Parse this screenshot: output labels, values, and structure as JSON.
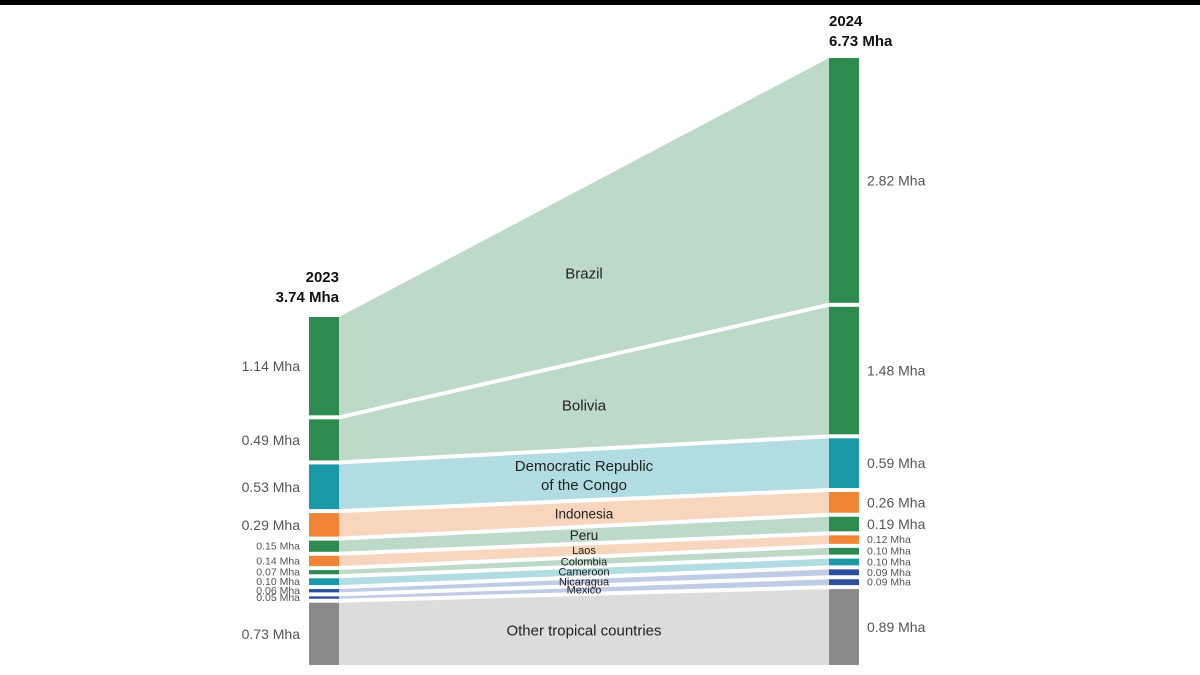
{
  "chart_data": {
    "type": "sankey",
    "title": "",
    "columns": [
      {
        "year": "2023",
        "total": "3.74 Mha"
      },
      {
        "year": "2024",
        "total": "6.73 Mha"
      }
    ],
    "unit": "Mha",
    "flows": [
      {
        "country": "Brazil",
        "value_2023": 1.14,
        "value_2024": 2.82,
        "label_2023": "1.14 Mha",
        "label_2024": "2.82 Mha",
        "bar_color": "#2e8b4f",
        "band_color": "#bdd9c7"
      },
      {
        "country": "Bolivia",
        "value_2023": 0.49,
        "value_2024": 1.48,
        "label_2023": "0.49 Mha",
        "label_2024": "1.48 Mha",
        "bar_color": "#2e8b4f",
        "band_color": "#bdd9c7"
      },
      {
        "country": "Democratic Republic\nof the Congo",
        "value_2023": 0.53,
        "value_2024": 0.59,
        "label_2023": "0.53 Mha",
        "label_2024": "0.59 Mha",
        "bar_color": "#1a9aa6",
        "band_color": "#b1dde2"
      },
      {
        "country": "Indonesia",
        "value_2023": 0.29,
        "value_2024": 0.26,
        "label_2023": "0.29 Mha",
        "label_2024": "0.26 Mha",
        "bar_color": "#ef8535",
        "band_color": "#f8d6bd"
      },
      {
        "country": "Peru",
        "value_2023": 0.15,
        "value_2024": 0.19,
        "label_2023": "0.15 Mha",
        "label_2024": "0.19 Mha",
        "bar_color": "#2e8b4f",
        "band_color": "#bdd9c7"
      },
      {
        "country": "Laos",
        "value_2023": 0.14,
        "value_2024": 0.12,
        "label_2023": "0.14 Mha",
        "label_2024": "0.12 Mha",
        "bar_color": "#ef8535",
        "band_color": "#f8d6bd"
      },
      {
        "country": "Colombia",
        "value_2023": 0.07,
        "value_2024": 0.1,
        "label_2023": "0.07 Mha",
        "label_2024": "0.10 Mha",
        "bar_color": "#2e8b4f",
        "band_color": "#bdd9c7"
      },
      {
        "country": "Cameroon",
        "value_2023": 0.1,
        "value_2024": 0.1,
        "label_2023": "0.10 Mha",
        "label_2024": "0.10 Mha",
        "bar_color": "#1a9aa6",
        "band_color": "#b1dde2"
      },
      {
        "country": "Nicaragua",
        "value_2023": 0.06,
        "value_2024": 0.09,
        "label_2023": "0.06 Mha",
        "label_2024": "0.09 Mha",
        "bar_color": "#2d4f9e",
        "band_color": "#c0cbe6"
      },
      {
        "country": "Mexico",
        "value_2023": 0.05,
        "value_2024": 0.09,
        "label_2023": "0.05 Mha",
        "label_2024": "0.09 Mha",
        "bar_color": "#2d4f9e",
        "band_color": "#c0cbe6"
      },
      {
        "country": "Other tropical countries",
        "value_2023": 0.73,
        "value_2024": 0.89,
        "label_2023": "0.73 Mha",
        "label_2024": "0.89 Mha",
        "bar_color": "#8a8a8a",
        "band_color": "#dcdcdc"
      }
    ]
  }
}
